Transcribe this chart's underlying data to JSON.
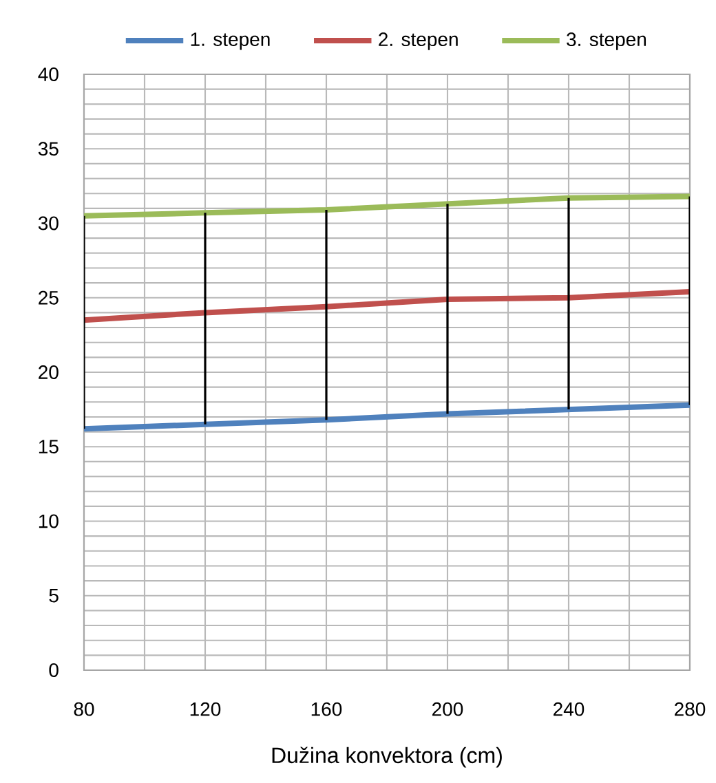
{
  "chart_data": {
    "type": "line",
    "xlabel": "Dužina konvektora (cm)",
    "x": [
      80,
      120,
      160,
      200,
      240,
      280
    ],
    "series": [
      {
        "name": "1. stepen",
        "color": "#4f81bd",
        "values": [
          16.2,
          16.5,
          16.8,
          17.2,
          17.5,
          17.8
        ],
        "errors": [
          [
            16.2,
            30.5
          ],
          [
            16.5,
            30.7
          ],
          [
            16.8,
            30.9
          ],
          [
            17.2,
            31.3
          ],
          [
            17.5,
            31.7
          ],
          [
            17.8,
            31.8
          ]
        ]
      },
      {
        "name": "2. stepen",
        "color": "#c0504d",
        "values": [
          23.5,
          24.0,
          24.4,
          24.9,
          25.0,
          25.4
        ]
      },
      {
        "name": "3. stepen",
        "color": "#9bbb59",
        "values": [
          30.5,
          30.7,
          30.9,
          31.3,
          31.7,
          31.8
        ]
      }
    ],
    "xlim": [
      80,
      280
    ],
    "ylim": [
      0,
      40
    ],
    "xticks": [
      80,
      {
        "value": 100,
        "label": null
      },
      120,
      {
        "value": 140,
        "label": null
      },
      160,
      {
        "value": 180,
        "label": null
      },
      200,
      {
        "value": 220,
        "label": null
      },
      240,
      {
        "value": 260,
        "label": null
      },
      280
    ],
    "yticks": [
      0,
      {
        "value": 1,
        "label": null
      },
      {
        "value": 2,
        "label": null
      },
      {
        "value": 3,
        "label": null
      },
      {
        "value": 4,
        "label": null
      },
      5,
      {
        "value": 6,
        "label": null
      },
      {
        "value": 7,
        "label": null
      },
      {
        "value": 8,
        "label": null
      },
      {
        "value": 9,
        "label": null
      },
      10,
      {
        "value": 11,
        "label": null
      },
      {
        "value": 12,
        "label": null
      },
      {
        "value": 13,
        "label": null
      },
      {
        "value": 14,
        "label": null
      },
      15,
      {
        "value": 16,
        "label": null
      },
      {
        "value": 17,
        "label": null
      },
      {
        "value": 18,
        "label": null
      },
      {
        "value": 19,
        "label": null
      },
      20,
      {
        "value": 21,
        "label": null
      },
      {
        "value": 22,
        "label": null
      },
      {
        "value": 23,
        "label": null
      },
      {
        "value": 24,
        "label": null
      },
      25,
      {
        "value": 26,
        "label": null
      },
      {
        "value": 27,
        "label": null
      },
      {
        "value": 28,
        "label": null
      },
      {
        "value": 29,
        "label": null
      },
      30,
      {
        "value": 31,
        "label": null
      },
      {
        "value": 32,
        "label": null
      },
      {
        "value": 33,
        "label": null
      },
      {
        "value": 34,
        "label": null
      },
      35,
      {
        "value": 36,
        "label": null
      },
      {
        "value": 37,
        "label": null
      },
      {
        "value": 38,
        "label": null
      },
      {
        "value": 39,
        "label": null
      },
      40
    ],
    "grid": true,
    "legend": "top",
    "marker": "none",
    "line_style": "solid"
  }
}
